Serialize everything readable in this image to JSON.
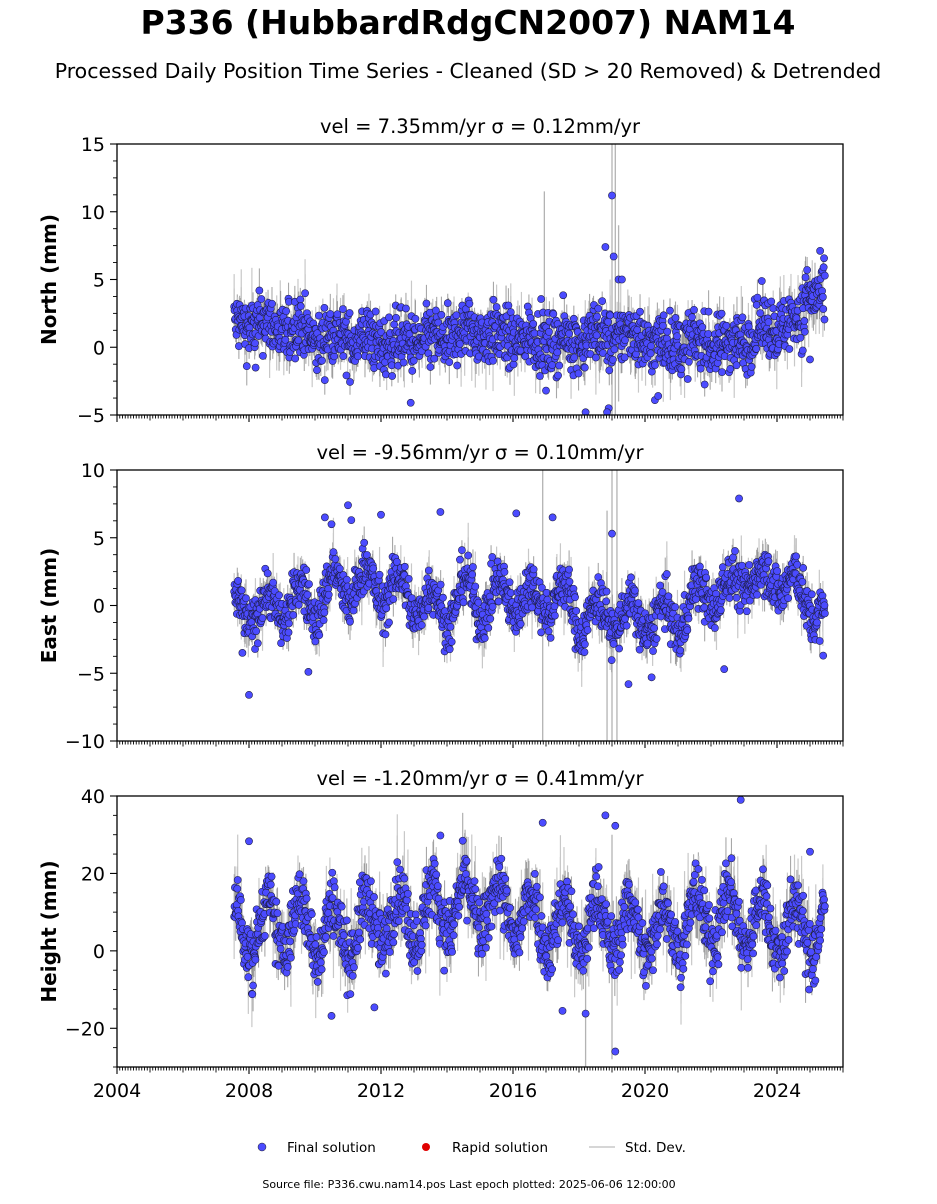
{
  "title": "P336 (HubbardRdgCN2007) NAM14",
  "subtitle": "Processed Daily Position Time Series - Cleaned (SD > 20 Removed) & Detrended",
  "legend": {
    "placement": "bottom-center",
    "items": [
      {
        "label": "Final solution",
        "color": "#4b4bff",
        "marker": "circle"
      },
      {
        "label": "Rapid solution",
        "color": "#e00000",
        "marker": "circle"
      },
      {
        "label": "Std. Dev.",
        "color": "#c8c8c8",
        "marker": "line"
      }
    ]
  },
  "footer": "Source file: P336.cwu.nam14.pos  Last epoch plotted: 2025-06-06 12:00:00",
  "chart_data": [
    {
      "type": "scatter",
      "name": "north",
      "title": "vel = 7.35mm/yr   σ = 0.12mm/yr",
      "ylabel": "North (mm)",
      "xlabel": "",
      "xlim": [
        2004.0,
        2026.0
      ],
      "ylim": [
        -5,
        15
      ],
      "yticks": [
        -5,
        0,
        5,
        10,
        15
      ],
      "xticks": [
        2004,
        2008,
        2012,
        2016,
        2020,
        2024
      ],
      "show_x_tick_labels": false,
      "grid": false,
      "envelope": [
        [
          2007.55,
          1.5
        ],
        [
          2008.0,
          1.8
        ],
        [
          2008.5,
          1.6
        ],
        [
          2009.0,
          1.2
        ],
        [
          2009.5,
          1.4
        ],
        [
          2010.0,
          0.6
        ],
        [
          2010.5,
          0.8
        ],
        [
          2011.0,
          0.7
        ],
        [
          2011.5,
          0.5
        ],
        [
          2012.0,
          0.4
        ],
        [
          2012.5,
          0.2
        ],
        [
          2013.0,
          0.6
        ],
        [
          2013.5,
          0.3
        ],
        [
          2014.0,
          0.7
        ],
        [
          2014.5,
          1.0
        ],
        [
          2015.0,
          1.3
        ],
        [
          2015.5,
          0.6
        ],
        [
          2016.0,
          0.8
        ],
        [
          2016.5,
          0.5
        ],
        [
          2017.0,
          0.5
        ],
        [
          2017.5,
          0.4
        ],
        [
          2018.0,
          0.6
        ],
        [
          2018.5,
          0.9
        ],
        [
          2019.0,
          0.7
        ],
        [
          2019.5,
          1.0
        ],
        [
          2020.0,
          0.6
        ],
        [
          2020.5,
          0.1
        ],
        [
          2021.0,
          0.4
        ],
        [
          2021.5,
          0.2
        ],
        [
          2022.0,
          0.3
        ],
        [
          2022.5,
          0.1
        ],
        [
          2023.0,
          0.6
        ],
        [
          2023.5,
          1.3
        ],
        [
          2024.0,
          1.6
        ],
        [
          2024.5,
          1.9
        ],
        [
          2024.85,
          2.1
        ],
        [
          2025.0,
          4.2
        ],
        [
          2025.45,
          3.6
        ]
      ],
      "scatter": 1.1,
      "amp": 0.4,
      "err": 1.1,
      "outliers": [
        [
          2019.0,
          11.2
        ],
        [
          2018.8,
          7.4
        ],
        [
          2019.05,
          6.7
        ],
        [
          2019.2,
          5.0
        ],
        [
          2019.3,
          5.0
        ],
        [
          2018.2,
          -4.8
        ],
        [
          2018.9,
          -4.5
        ],
        [
          2018.85,
          -4.8
        ],
        [
          2012.9,
          -4.1
        ],
        [
          2020.3,
          -3.9
        ],
        [
          2020.4,
          -3.6
        ],
        [
          2017.0,
          -3.2
        ],
        [
          2008.2,
          -1.5
        ],
        [
          2025.0,
          -0.9
        ]
      ],
      "spikes": [
        [
          2019.0,
          -5,
          15
        ],
        [
          2019.1,
          -5,
          15
        ],
        [
          2016.95,
          -2,
          11.5
        ],
        [
          2019.2,
          -4,
          9
        ]
      ]
    },
    {
      "type": "scatter",
      "name": "east",
      "title": "vel = -9.56mm/yr   σ = 0.10mm/yr",
      "ylabel": "East (mm)",
      "xlabel": "",
      "xlim": [
        2004.0,
        2026.0
      ],
      "ylim": [
        -10,
        10
      ],
      "yticks": [
        -10,
        -5,
        0,
        5,
        10
      ],
      "xticks": [
        2004,
        2008,
        2012,
        2016,
        2020,
        2024
      ],
      "show_x_tick_labels": false,
      "grid": false,
      "envelope": [
        [
          2007.55,
          -0.8
        ],
        [
          2008.0,
          0.0
        ],
        [
          2008.5,
          -0.5
        ],
        [
          2009.0,
          0.2
        ],
        [
          2009.5,
          0.3
        ],
        [
          2010.0,
          0.2
        ],
        [
          2010.5,
          1.2
        ],
        [
          2011.0,
          1.5
        ],
        [
          2011.5,
          1.6
        ],
        [
          2012.0,
          1.4
        ],
        [
          2012.5,
          1.0
        ],
        [
          2013.0,
          0.5
        ],
        [
          2013.5,
          0.0
        ],
        [
          2014.0,
          -0.3
        ],
        [
          2014.5,
          0.9
        ],
        [
          2015.0,
          0.3
        ],
        [
          2015.5,
          0.5
        ],
        [
          2016.0,
          0.8
        ],
        [
          2016.5,
          0.2
        ],
        [
          2017.0,
          0.8
        ],
        [
          2017.5,
          0.4
        ],
        [
          2018.0,
          -0.6
        ],
        [
          2018.5,
          -1.0
        ],
        [
          2019.0,
          -0.4
        ],
        [
          2019.5,
          -1.2
        ],
        [
          2020.0,
          -0.8
        ],
        [
          2020.5,
          -1.3
        ],
        [
          2021.0,
          -0.8
        ],
        [
          2021.5,
          0.2
        ],
        [
          2022.0,
          1.2
        ],
        [
          2022.5,
          0.6
        ],
        [
          2023.0,
          2.6
        ],
        [
          2023.5,
          1.4
        ],
        [
          2024.0,
          2.4
        ],
        [
          2024.5,
          1.0
        ],
        [
          2025.0,
          0.4
        ],
        [
          2025.45,
          -1.0
        ]
      ],
      "scatter": 0.9,
      "amp": 1.4,
      "err": 1.0,
      "outliers": [
        [
          2011.0,
          7.4
        ],
        [
          2010.3,
          6.5
        ],
        [
          2010.5,
          6.0
        ],
        [
          2011.1,
          6.3
        ],
        [
          2012.0,
          6.7
        ],
        [
          2013.8,
          6.9
        ],
        [
          2016.1,
          6.8
        ],
        [
          2017.2,
          6.5
        ],
        [
          2022.85,
          7.9
        ],
        [
          2019.0,
          5.3
        ],
        [
          2008.0,
          -6.6
        ],
        [
          2009.8,
          -4.9
        ],
        [
          2019.5,
          -5.8
        ],
        [
          2020.2,
          -5.3
        ],
        [
          2022.4,
          -4.7
        ],
        [
          2025.4,
          -3.7
        ],
        [
          2007.8,
          -3.5
        ]
      ],
      "spikes": [
        [
          2016.9,
          -10,
          10
        ],
        [
          2019.0,
          -10,
          10
        ],
        [
          2019.15,
          -10,
          10
        ],
        [
          2018.85,
          -10,
          7
        ]
      ]
    },
    {
      "type": "scatter",
      "name": "height",
      "title": "vel = -1.20mm/yr   σ = 0.41mm/yr",
      "ylabel": "Height (mm)",
      "xlabel": "",
      "xlim": [
        2004.0,
        2026.0
      ],
      "ylim": [
        -30,
        40
      ],
      "yticks": [
        -20,
        0,
        20,
        40
      ],
      "xticks": [
        2004,
        2008,
        2012,
        2016,
        2020,
        2024
      ],
      "show_x_tick_labels": true,
      "grid": false,
      "envelope": [
        [
          2007.55,
          6
        ],
        [
          2008.0,
          5
        ],
        [
          2009.0,
          7
        ],
        [
          2010.0,
          6
        ],
        [
          2011.0,
          5
        ],
        [
          2012.0,
          8
        ],
        [
          2013.0,
          9
        ],
        [
          2014.0,
          11
        ],
        [
          2015.0,
          12
        ],
        [
          2016.0,
          10
        ],
        [
          2017.0,
          7
        ],
        [
          2018.0,
          6
        ],
        [
          2019.0,
          7
        ],
        [
          2020.0,
          5
        ],
        [
          2021.0,
          7
        ],
        [
          2022.0,
          9
        ],
        [
          2023.0,
          8
        ],
        [
          2024.0,
          6
        ],
        [
          2025.0,
          5
        ],
        [
          2025.45,
          6
        ]
      ],
      "scatter": 4.0,
      "amp": 7.0,
      "err": 5.0,
      "outliers": [
        [
          2008.0,
          28.3
        ],
        [
          2013.8,
          29.8
        ],
        [
          2016.9,
          33.1
        ],
        [
          2018.8,
          35.0
        ],
        [
          2019.1,
          32.3
        ],
        [
          2022.9,
          39.0
        ],
        [
          2025.0,
          25.6
        ],
        [
          2019.1,
          -26.0
        ],
        [
          2018.2,
          -16.2
        ],
        [
          2010.5,
          -16.8
        ],
        [
          2011.8,
          -14.6
        ],
        [
          2008.1,
          -11.2
        ],
        [
          2017.5,
          -15.5
        ]
      ],
      "spikes": [
        [
          2018.2,
          -30,
          12
        ],
        [
          2019.0,
          -28,
          30
        ]
      ]
    }
  ]
}
